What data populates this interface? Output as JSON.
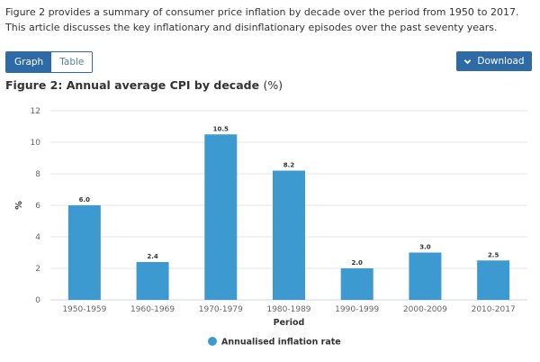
{
  "intro_text": "Figure 2 provides a summary of consumer price inflation by decade over the period from 1950 to 2017. This article discusses the key inflationary and disinflationary episodes over the past seventy years.",
  "view_toggle": {
    "graph_label": "Graph",
    "table_label": "Table",
    "selected": "Graph"
  },
  "download": {
    "label": "Download",
    "icon": "chevron-down-icon"
  },
  "figure": {
    "title": "Figure 2: Annual average CPI by decade",
    "unit": "(%)"
  },
  "colors": {
    "bar": "#3d9ad1",
    "button": "#2d6aa6",
    "grid": "#e6e6e6"
  },
  "chart_data": {
    "type": "bar",
    "title": "Figure 2: Annual average CPI by decade (%)",
    "categories": [
      "1950-1959",
      "1960-1969",
      "1970-1979",
      "1980-1989",
      "1990-1999",
      "2000-2009",
      "2010-2017"
    ],
    "series": [
      {
        "name": "Annualised inflation rate",
        "values": [
          6.0,
          2.4,
          10.5,
          8.2,
          2.0,
          3.0,
          2.5
        ]
      }
    ],
    "data_labels": [
      "6.0",
      "2.4",
      "10.5",
      "8.2",
      "2.0",
      "3.0",
      "2.5"
    ],
    "xlabel": "Period",
    "ylabel": "%",
    "ylim": [
      0,
      12
    ],
    "yticks": [
      0,
      2,
      4,
      6,
      8,
      10,
      12
    ],
    "grid": true,
    "legend": {
      "placement": "bottom-center",
      "entries": [
        "Annualised inflation rate"
      ]
    }
  }
}
